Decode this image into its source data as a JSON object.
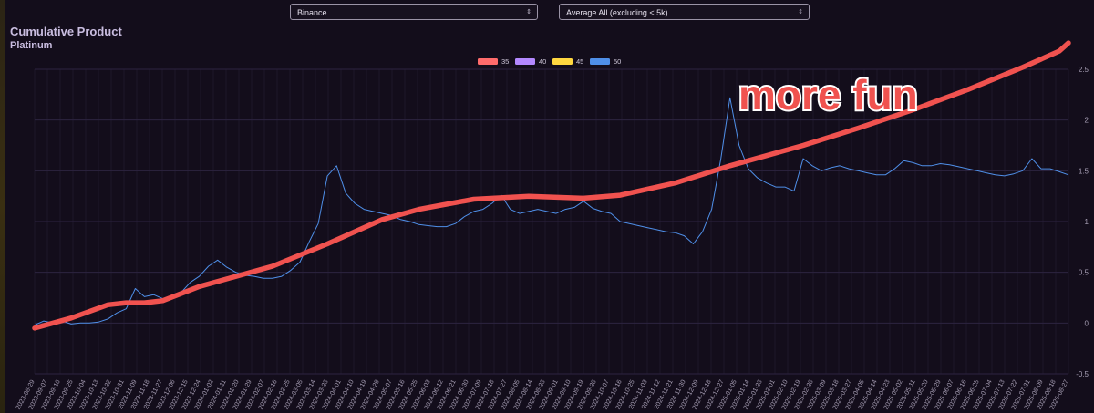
{
  "controls": {
    "exchange_select": {
      "value": "Binance",
      "caret": "⇕"
    },
    "average_select": {
      "value": "Average All (excluding < 5k)",
      "caret": "⇕"
    }
  },
  "header": {
    "title": "Cumulative Product",
    "subtitle": "Platinum"
  },
  "annotation": {
    "text": "more fun",
    "color": "#f0524f"
  },
  "colors": {
    "background": "#130d1b",
    "grid": "#2d2440",
    "axis_text": "#a79fb5"
  },
  "chart_data": {
    "type": "line",
    "title": "Cumulative Product",
    "subtitle": "Platinum",
    "xlabel": "",
    "ylabel": "",
    "ylim": [
      -0.5,
      2.5
    ],
    "yticks": [
      -0.5,
      0,
      0.5,
      1,
      1.5,
      2,
      2.5
    ],
    "grid": true,
    "legend_placement": "top-center",
    "legend": [
      {
        "name": "35",
        "color": "#ff6b6b"
      },
      {
        "name": "40",
        "color": "#b388ff"
      },
      {
        "name": "45",
        "color": "#ffd740"
      },
      {
        "name": "50",
        "color": "#4f8fe8"
      }
    ],
    "x_tick_labels": [
      "2023-08-29",
      "2023-09-07",
      "2023-09-16",
      "2023-09-25",
      "2023-10-04",
      "2023-10-13",
      "2023-10-22",
      "2023-10-31",
      "2023-11-09",
      "2023-11-18",
      "2023-11-27",
      "2023-12-06",
      "2023-12-15",
      "2023-12-24",
      "2024-01-02",
      "2024-01-11",
      "2024-01-20",
      "2024-01-29",
      "2024-02-07",
      "2024-02-16",
      "2024-02-25",
      "2024-03-05",
      "2024-03-14",
      "2024-03-23",
      "2024-04-01",
      "2024-04-10",
      "2024-04-19",
      "2024-04-28",
      "2024-05-07",
      "2024-05-16",
      "2024-05-25",
      "2024-06-03",
      "2024-06-12",
      "2024-06-21",
      "2024-06-30",
      "2024-07-09",
      "2024-07-18",
      "2024-07-27",
      "2024-08-05",
      "2024-08-14",
      "2024-08-23",
      "2024-09-01",
      "2024-09-10",
      "2024-09-19",
      "2024-09-28",
      "2024-10-07",
      "2024-10-16",
      "2024-10-25",
      "2024-11-03",
      "2024-11-12",
      "2024-11-21",
      "2024-11-30",
      "2024-12-09",
      "2024-12-18",
      "2024-12-27",
      "2025-01-05",
      "2025-01-14",
      "2025-01-23",
      "2025-02-01",
      "2025-02-10",
      "2025-02-19",
      "2025-02-28",
      "2025-03-09",
      "2025-03-18",
      "2025-03-27",
      "2025-04-05",
      "2025-04-14",
      "2025-04-23",
      "2025-05-02",
      "2025-05-11",
      "2025-05-20",
      "2025-05-29",
      "2025-06-07",
      "2025-06-16",
      "2025-06-25",
      "2025-07-04",
      "2025-07-13",
      "2025-07-22",
      "2025-07-31",
      "2025-08-09",
      "2025-08-18",
      "2025-08-27"
    ],
    "series": [
      {
        "name": "50",
        "color": "#4f8fe8",
        "points": [
          [
            0,
            -0.02
          ],
          [
            1,
            0.02
          ],
          [
            2,
            0.0
          ],
          [
            3,
            0.02
          ],
          [
            4,
            -0.01
          ],
          [
            5,
            0.0
          ],
          [
            6,
            0.0
          ],
          [
            7,
            0.01
          ],
          [
            8,
            0.04
          ],
          [
            9,
            0.1
          ],
          [
            10,
            0.14
          ],
          [
            11,
            0.34
          ],
          [
            12,
            0.26
          ],
          [
            13,
            0.28
          ],
          [
            14,
            0.24
          ],
          [
            15,
            0.25
          ],
          [
            16,
            0.3
          ],
          [
            17,
            0.4
          ],
          [
            18,
            0.46
          ],
          [
            19,
            0.56
          ],
          [
            20,
            0.62
          ],
          [
            21,
            0.55
          ],
          [
            22,
            0.5
          ],
          [
            23,
            0.47
          ],
          [
            24,
            0.46
          ],
          [
            25,
            0.44
          ],
          [
            26,
            0.44
          ],
          [
            27,
            0.46
          ],
          [
            28,
            0.52
          ],
          [
            29,
            0.6
          ],
          [
            30,
            0.8
          ],
          [
            31,
            0.98
          ],
          [
            32,
            1.45
          ],
          [
            33,
            1.55
          ],
          [
            34,
            1.28
          ],
          [
            35,
            1.18
          ],
          [
            36,
            1.12
          ],
          [
            37,
            1.1
          ],
          [
            38,
            1.08
          ],
          [
            39,
            1.06
          ],
          [
            40,
            1.02
          ],
          [
            41,
            1.0
          ],
          [
            42,
            0.97
          ],
          [
            43,
            0.96
          ],
          [
            44,
            0.95
          ],
          [
            45,
            0.95
          ],
          [
            46,
            0.98
          ],
          [
            47,
            1.05
          ],
          [
            48,
            1.1
          ],
          [
            49,
            1.12
          ],
          [
            50,
            1.18
          ],
          [
            51,
            1.26
          ],
          [
            52,
            1.12
          ],
          [
            53,
            1.08
          ],
          [
            54,
            1.1
          ],
          [
            55,
            1.12
          ],
          [
            56,
            1.1
          ],
          [
            57,
            1.08
          ],
          [
            58,
            1.12
          ],
          [
            59,
            1.14
          ],
          [
            60,
            1.2
          ],
          [
            61,
            1.13
          ],
          [
            62,
            1.1
          ],
          [
            63,
            1.08
          ],
          [
            64,
            1.0
          ],
          [
            65,
            0.98
          ],
          [
            66,
            0.96
          ],
          [
            67,
            0.94
          ],
          [
            68,
            0.92
          ],
          [
            69,
            0.9
          ],
          [
            70,
            0.89
          ],
          [
            71,
            0.86
          ],
          [
            72,
            0.78
          ],
          [
            73,
            0.9
          ],
          [
            74,
            1.12
          ],
          [
            75,
            1.62
          ],
          [
            76,
            2.22
          ],
          [
            77,
            1.75
          ],
          [
            78,
            1.52
          ],
          [
            79,
            1.43
          ],
          [
            80,
            1.38
          ],
          [
            81,
            1.34
          ],
          [
            82,
            1.34
          ],
          [
            83,
            1.3
          ],
          [
            84,
            1.62
          ],
          [
            85,
            1.55
          ],
          [
            86,
            1.5
          ],
          [
            87,
            1.53
          ],
          [
            88,
            1.55
          ],
          [
            89,
            1.52
          ],
          [
            90,
            1.5
          ],
          [
            91,
            1.48
          ],
          [
            92,
            1.46
          ],
          [
            93,
            1.46
          ],
          [
            94,
            1.52
          ],
          [
            95,
            1.6
          ],
          [
            96,
            1.58
          ],
          [
            97,
            1.55
          ],
          [
            98,
            1.55
          ],
          [
            99,
            1.57
          ],
          [
            100,
            1.56
          ],
          [
            101,
            1.54
          ],
          [
            102,
            1.52
          ],
          [
            103,
            1.5
          ],
          [
            104,
            1.48
          ],
          [
            105,
            1.46
          ],
          [
            106,
            1.45
          ],
          [
            107,
            1.47
          ],
          [
            108,
            1.5
          ],
          [
            109,
            1.62
          ],
          [
            110,
            1.52
          ],
          [
            111,
            1.52
          ],
          [
            112,
            1.49
          ],
          [
            113,
            1.46
          ]
        ]
      }
    ],
    "overlay_line": {
      "label": "more fun",
      "color": "#f0524f",
      "points": [
        [
          0,
          -0.05
        ],
        [
          4,
          0.05
        ],
        [
          8,
          0.18
        ],
        [
          10,
          0.2
        ],
        [
          12,
          0.2
        ],
        [
          14,
          0.22
        ],
        [
          18,
          0.36
        ],
        [
          26,
          0.56
        ],
        [
          32,
          0.78
        ],
        [
          38,
          1.02
        ],
        [
          42,
          1.12
        ],
        [
          48,
          1.22
        ],
        [
          54,
          1.25
        ],
        [
          60,
          1.23
        ],
        [
          64,
          1.26
        ],
        [
          70,
          1.38
        ],
        [
          76,
          1.55
        ],
        [
          84,
          1.75
        ],
        [
          90,
          1.92
        ],
        [
          96,
          2.1
        ],
        [
          102,
          2.3
        ],
        [
          108,
          2.52
        ],
        [
          112,
          2.68
        ],
        [
          113,
          2.76
        ]
      ]
    }
  }
}
